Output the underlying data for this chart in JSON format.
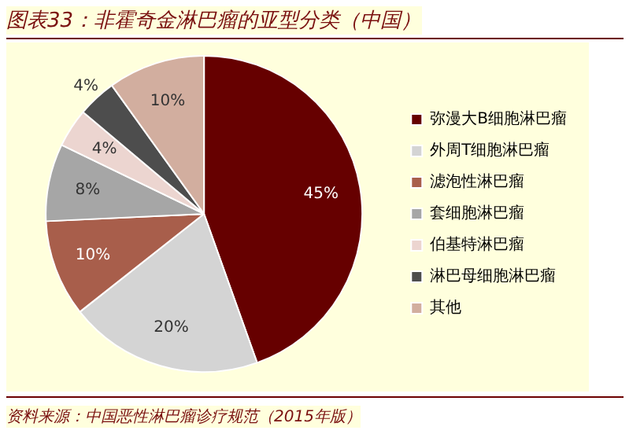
{
  "chart_data": {
    "type": "pie",
    "title": "图表33：非霍奇金淋巴瘤的亚型分类（中国）",
    "categories": [
      "弥漫大B细胞淋巴瘤",
      "外周T细胞淋巴瘤",
      "滤泡性淋巴瘤",
      "套细胞淋巴瘤",
      "伯基特淋巴瘤",
      "淋巴母细胞淋巴瘤",
      "其他"
    ],
    "values": [
      45,
      20,
      10,
      8,
      4,
      4,
      10
    ],
    "colors": [
      "#660000",
      "#d4d4d4",
      "#a85e4b",
      "#a6a6a6",
      "#ecd5d0",
      "#4d4d4d",
      "#d2ae9f"
    ],
    "value_labels": [
      "45%",
      "20%",
      "10%",
      "8%",
      "4%",
      "4%",
      "10%"
    ],
    "legend": "right",
    "annotations": [
      "资料来源：中国恶性淋巴瘤诊疗规范（2015年版）"
    ]
  }
}
